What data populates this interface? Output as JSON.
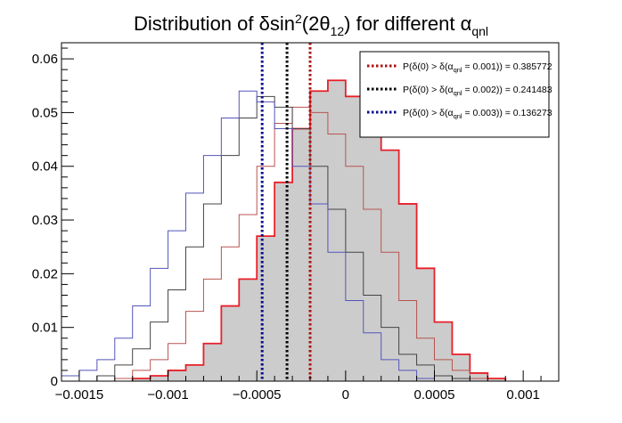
{
  "chart_data": {
    "type": "line",
    "title": {
      "prefix": "Distribution of δsin",
      "sup": "2",
      "mid": "(2θ",
      "sub": "12",
      "mid2": ") for different α",
      "sub2": "qnl"
    },
    "xlabel": "",
    "ylabel": "",
    "xlim": [
      -0.0016,
      0.0012
    ],
    "ylim": [
      0,
      0.063
    ],
    "x_ticks": [
      {
        "value": -0.0015,
        "label": "−0.0015"
      },
      {
        "value": -0.001,
        "label": "−0.001"
      },
      {
        "value": -0.0005,
        "label": "−0.0005"
      },
      {
        "value": 0,
        "label": "0"
      },
      {
        "value": 0.0005,
        "label": "0.0005"
      },
      {
        "value": 0.001,
        "label": "0.001"
      }
    ],
    "y_ticks": [
      {
        "value": 0,
        "label": "0"
      },
      {
        "value": 0.01,
        "label": "0.01"
      },
      {
        "value": 0.02,
        "label": "0.02"
      },
      {
        "value": 0.03,
        "label": "0.03"
      },
      {
        "value": 0.04,
        "label": "0.04"
      },
      {
        "value": 0.05,
        "label": "0.05"
      },
      {
        "value": 0.06,
        "label": "0.06"
      }
    ],
    "grid": false,
    "legend_position": "top-right",
    "series": [
      {
        "key": "red",
        "color": "#e8202a",
        "fill": "#cccccc",
        "x": [
          -0.00115,
          -0.00105,
          -0.00095,
          -0.00085,
          -0.00075,
          -0.00065,
          -0.00055,
          -0.00045,
          -0.00035,
          -0.00025,
          -0.00015,
          -5e-05,
          5e-05,
          0.00015,
          0.00025,
          0.00035,
          0.00045,
          0.00055,
          0.00065,
          0.00075,
          0.00085
        ],
        "y": [
          0.0005,
          0.001,
          0.002,
          0.003,
          0.007,
          0.014,
          0.019,
          0.027,
          0.037,
          0.047,
          0.054,
          0.056,
          0.053,
          0.05,
          0.043,
          0.033,
          0.021,
          0.011,
          0.005,
          0.0015,
          0.0005
        ]
      },
      {
        "key": "brown",
        "color": "#b85450",
        "fill": "none",
        "x": [
          -0.00125,
          -0.00115,
          -0.00105,
          -0.00095,
          -0.00085,
          -0.00075,
          -0.00065,
          -0.00055,
          -0.00045,
          -0.00035,
          -0.00025,
          -0.00015,
          -5e-05,
          5e-05,
          0.00015,
          0.00025,
          0.00035,
          0.00045,
          0.00055,
          0.00065,
          0.00075
        ],
        "y": [
          0.0005,
          0.002,
          0.004,
          0.007,
          0.013,
          0.019,
          0.025,
          0.031,
          0.04,
          0.048,
          0.051,
          0.05,
          0.046,
          0.04,
          0.032,
          0.024,
          0.015,
          0.008,
          0.004,
          0.002,
          0.0005
        ]
      },
      {
        "key": "black",
        "color": "#444444",
        "fill": "none",
        "x": [
          -0.00135,
          -0.00125,
          -0.00115,
          -0.00105,
          -0.00095,
          -0.00085,
          -0.00075,
          -0.00065,
          -0.00055,
          -0.00045,
          -0.00035,
          -0.00025,
          -0.00015,
          -5e-05,
          5e-05,
          0.00015,
          0.00025,
          0.00035,
          0.00045,
          0.00055,
          0.00065
        ],
        "y": [
          0.001,
          0.003,
          0.006,
          0.011,
          0.017,
          0.025,
          0.033,
          0.042,
          0.049,
          0.053,
          0.051,
          0.047,
          0.04,
          0.032,
          0.024,
          0.016,
          0.01,
          0.005,
          0.003,
          0.001,
          0.0005
        ]
      },
      {
        "key": "blue",
        "color": "#5555bb",
        "fill": "none",
        "x": [
          -0.00155,
          -0.00145,
          -0.00135,
          -0.00125,
          -0.00115,
          -0.00105,
          -0.00095,
          -0.00085,
          -0.00075,
          -0.00065,
          -0.00055,
          -0.00045,
          -0.00035,
          -0.00025,
          -0.00015,
          -5e-05,
          5e-05,
          0.00015,
          0.00025,
          0.00035,
          0.00045
        ],
        "y": [
          0.001,
          0.002,
          0.004,
          0.008,
          0.014,
          0.021,
          0.028,
          0.035,
          0.042,
          0.049,
          0.054,
          0.052,
          0.047,
          0.04,
          0.033,
          0.024,
          0.015,
          0.009,
          0.004,
          0.002,
          0.0005
        ]
      }
    ],
    "vlines": [
      {
        "key": "red",
        "x": -0.0002,
        "color": "#aa1111"
      },
      {
        "key": "black",
        "x": -0.00033,
        "color": "#000000"
      },
      {
        "key": "blue",
        "x": -0.00047,
        "color": "#0a0a8a"
      }
    ],
    "legend": [
      {
        "color": "#aa1111",
        "text": "P(δ(0) > δ(α",
        "sub": "qnl",
        "text2": " = 0.001)) = 0.385772"
      },
      {
        "color": "#000000",
        "text": "P(δ(0) > δ(α",
        "sub": "qnl",
        "text2": " = 0.002)) = 0.241483"
      },
      {
        "color": "#0a0a8a",
        "text": "P(δ(0) > δ(α",
        "sub": "qnl",
        "text2": " = 0.003)) = 0.136273"
      }
    ]
  }
}
